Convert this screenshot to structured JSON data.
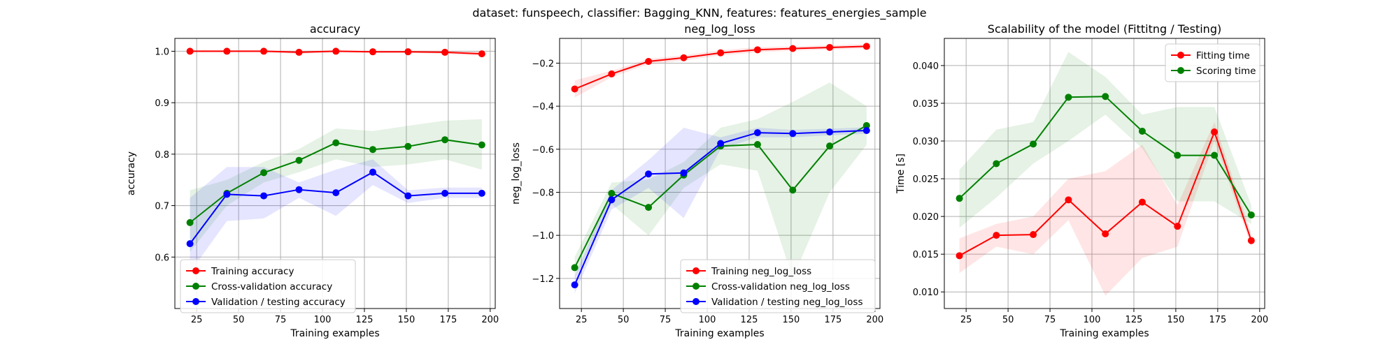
{
  "suptitle": "dataset: funspeech, classifier: Bagging_KNN, features: features_energies_sample",
  "chart_data": [
    {
      "type": "line",
      "title": "accuracy",
      "xlabel": "Training examples",
      "ylabel": "accuracy",
      "xlim": [
        12,
        203
      ],
      "ylim": [
        0.5,
        1.025
      ],
      "xticks": [
        25,
        50,
        75,
        100,
        125,
        150,
        175,
        200
      ],
      "yticks": [
        0.6,
        0.7,
        0.8,
        0.9,
        1.0
      ],
      "ytick_labels": [
        "0.6",
        "0.7",
        "0.8",
        "0.9",
        "1.0"
      ],
      "grid": true,
      "legend": "lower-left",
      "x": [
        21,
        43,
        65,
        86,
        108,
        130,
        151,
        173,
        195
      ],
      "series": [
        {
          "name": "Training accuracy",
          "color": "#ff0000",
          "values": [
            1.0,
            1.0,
            1.0,
            0.998,
            1.0,
            0.999,
            0.999,
            0.998,
            0.995
          ],
          "lower": [
            0.998,
            0.998,
            0.998,
            0.995,
            0.998,
            0.997,
            0.997,
            0.995,
            0.991
          ],
          "upper": [
            1.002,
            1.002,
            1.002,
            1.001,
            1.002,
            1.001,
            1.001,
            1.001,
            0.999
          ]
        },
        {
          "name": "Cross-validation accuracy",
          "color": "#008000",
          "values": [
            0.667,
            0.724,
            0.764,
            0.788,
            0.822,
            0.809,
            0.815,
            0.828,
            0.818
          ],
          "lower": [
            0.61,
            0.7,
            0.745,
            0.765,
            0.79,
            0.775,
            0.78,
            0.79,
            0.77
          ],
          "upper": [
            0.73,
            0.75,
            0.785,
            0.81,
            0.85,
            0.845,
            0.855,
            0.865,
            0.868
          ]
        },
        {
          "name": "Validation / testing accuracy",
          "color": "#0000ff",
          "values": [
            0.626,
            0.722,
            0.719,
            0.731,
            0.725,
            0.765,
            0.719,
            0.724,
            0.724
          ],
          "lower": [
            0.57,
            0.67,
            0.675,
            0.715,
            0.68,
            0.74,
            0.705,
            0.715,
            0.715
          ],
          "upper": [
            0.715,
            0.775,
            0.775,
            0.745,
            0.77,
            0.79,
            0.73,
            0.735,
            0.735
          ]
        }
      ]
    },
    {
      "type": "line",
      "title": "neg_log_loss",
      "xlabel": "Training examples",
      "ylabel": "neg_log_loss",
      "xlim": [
        12,
        203
      ],
      "ylim": [
        -1.34,
        -0.085
      ],
      "xticks": [
        25,
        50,
        75,
        100,
        125,
        150,
        175,
        200
      ],
      "yticks": [
        -1.2,
        -1.0,
        -0.8,
        -0.6,
        -0.4,
        -0.2
      ],
      "ytick_labels": [
        "−1.2",
        "−1.0",
        "−0.8",
        "−0.6",
        "−0.4",
        "−0.2"
      ],
      "grid": true,
      "legend": "lower-right",
      "x": [
        21,
        43,
        65,
        86,
        108,
        130,
        151,
        173,
        195
      ],
      "series": [
        {
          "name": "Training neg_log_loss",
          "color": "#ff0000",
          "values": [
            -0.32,
            -0.25,
            -0.192,
            -0.175,
            -0.152,
            -0.138,
            -0.132,
            -0.127,
            -0.122
          ],
          "lower": [
            -0.36,
            -0.265,
            -0.205,
            -0.188,
            -0.164,
            -0.15,
            -0.142,
            -0.137,
            -0.132
          ],
          "upper": [
            -0.28,
            -0.235,
            -0.18,
            -0.163,
            -0.14,
            -0.126,
            -0.122,
            -0.117,
            -0.112
          ]
        },
        {
          "name": "Cross-validation neg_log_loss",
          "color": "#008000",
          "values": [
            -1.15,
            -0.805,
            -0.87,
            -0.72,
            -0.585,
            -0.578,
            -0.79,
            -0.585,
            -0.49
          ],
          "lower": [
            -1.2,
            -0.855,
            -1.0,
            -0.78,
            -0.67,
            -0.7,
            -1.2,
            -0.8,
            -0.58
          ],
          "upper": [
            -1.1,
            -0.755,
            -0.74,
            -0.66,
            -0.5,
            -0.46,
            -0.38,
            -0.29,
            -0.4
          ]
        },
        {
          "name": "Validation / testing neg_log_loss",
          "color": "#0000ff",
          "values": [
            -1.23,
            -0.835,
            -0.715,
            -0.71,
            -0.573,
            -0.523,
            -0.527,
            -0.52,
            -0.513
          ],
          "lower": [
            -1.27,
            -0.88,
            -0.78,
            -0.92,
            -0.6,
            -0.545,
            -0.545,
            -0.535,
            -0.528
          ],
          "upper": [
            -1.19,
            -0.79,
            -0.65,
            -0.5,
            -0.545,
            -0.5,
            -0.51,
            -0.505,
            -0.498
          ]
        }
      ]
    },
    {
      "type": "line",
      "title": "Scalability of the model (Fittitng / Testing)",
      "xlabel": "Training examples",
      "ylabel": "Time [s]",
      "xlim": [
        12,
        203
      ],
      "ylim": [
        0.0078,
        0.0436
      ],
      "xticks": [
        25,
        50,
        75,
        100,
        125,
        150,
        175,
        200
      ],
      "yticks": [
        0.01,
        0.015,
        0.02,
        0.025,
        0.03,
        0.035,
        0.04
      ],
      "ytick_labels": [
        "0.010",
        "0.015",
        "0.020",
        "0.025",
        "0.030",
        "0.035",
        "0.040"
      ],
      "grid": true,
      "legend": "upper-right",
      "x": [
        21,
        43,
        65,
        86,
        108,
        130,
        151,
        173,
        195
      ],
      "series": [
        {
          "name": "Fitting time",
          "color": "#ff0000",
          "values": [
            0.0148,
            0.0175,
            0.0176,
            0.0222,
            0.0177,
            0.0219,
            0.0187,
            0.0312,
            0.0168
          ],
          "lower": [
            0.0125,
            0.016,
            0.015,
            0.0195,
            0.0095,
            0.0145,
            0.016,
            0.03,
            0.016
          ],
          "upper": [
            0.0171,
            0.019,
            0.02,
            0.025,
            0.026,
            0.0295,
            0.0215,
            0.0325,
            0.0177
          ]
        },
        {
          "name": "Scoring time",
          "color": "#008000",
          "values": [
            0.0224,
            0.027,
            0.0296,
            0.0358,
            0.0359,
            0.0313,
            0.0281,
            0.0281,
            0.0202
          ],
          "lower": [
            0.0185,
            0.0225,
            0.027,
            0.03,
            0.0335,
            0.029,
            0.022,
            0.022,
            0.019
          ],
          "upper": [
            0.0262,
            0.0315,
            0.0325,
            0.0418,
            0.0385,
            0.0335,
            0.0345,
            0.0345,
            0.0215
          ]
        }
      ]
    }
  ]
}
